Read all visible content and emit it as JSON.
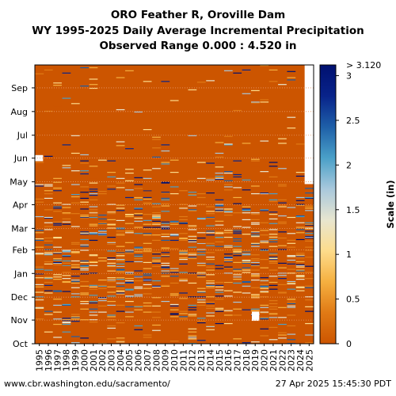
{
  "title_lines": [
    "ORO Feather R, Oroville Dam",
    "WY 1995-2025 Daily Average Incremental Precipitation",
    "Observed Range 0.000 : 4.520 in"
  ],
  "footer": {
    "source": "www.cbr.washington.edu/sacramento/",
    "timestamp": "27 Apr 2025 15:45:30 PDT"
  },
  "colors": {
    "base": "#cc5500",
    "grid": "#e69966",
    "missing": "#ffffff",
    "scale": [
      "#cc5500",
      "#e07a15",
      "#f5b040",
      "#fddc8c",
      "#e8e6d0",
      "#a8c8dc",
      "#4aa0c8",
      "#1e5fa8",
      "#08238a",
      "#001070"
    ]
  },
  "chart_data": {
    "type": "heatmap",
    "x_label": "",
    "y_label": "",
    "years": [
      "1995",
      "1996",
      "1997",
      "1998",
      "1999",
      "2000",
      "2001",
      "2002",
      "2003",
      "2004",
      "2005",
      "2006",
      "2007",
      "2008",
      "2009",
      "2010",
      "2011",
      "2012",
      "2013",
      "2014",
      "2015",
      "2016",
      "2017",
      "2018",
      "2019",
      "2020",
      "2021",
      "2022",
      "2023",
      "2024",
      "2025"
    ],
    "months": [
      "Oct",
      "Nov",
      "Dec",
      "Jan",
      "Feb",
      "Mar",
      "Apr",
      "May",
      "Jun",
      "Jul",
      "Aug",
      "Sep"
    ],
    "colorbar": {
      "label": "Scale (in)",
      "min": 0,
      "max": 3.12,
      "ticks": [
        0,
        0.5,
        1,
        1.5,
        2,
        2.5,
        3
      ],
      "tick_labels": [
        "0",
        "0.5",
        "1",
        "1.5",
        "2",
        "2.5",
        "3"
      ],
      "top_label": "> 3.120"
    },
    "observed_range": [
      0.0,
      4.52
    ],
    "last_observed_date": "2025-04-27"
  }
}
